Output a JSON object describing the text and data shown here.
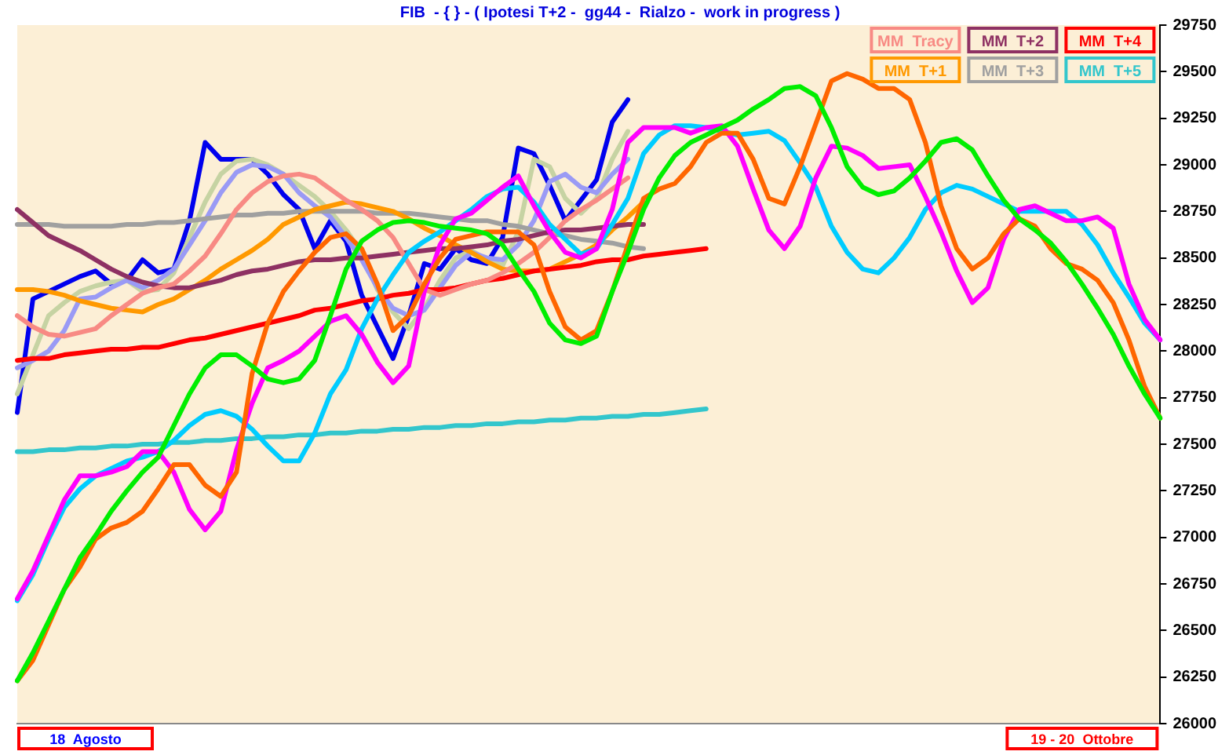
{
  "chart_data": {
    "type": "line",
    "title": "FIB  - { } - ( Ipotesi T+2 -  gg44 -  Rialzo -  work in progress )",
    "categories": [
      null,
      null,
      null,
      null,
      null,
      null,
      null,
      null,
      null,
      null,
      null,
      null,
      null,
      null,
      null,
      null,
      null,
      null,
      null,
      null,
      null,
      null,
      null,
      null,
      null,
      null,
      null,
      null,
      null,
      null,
      null,
      null,
      null,
      null,
      null,
      null,
      null,
      null,
      null,
      null,
      null,
      null,
      null,
      null,
      null,
      null,
      null,
      null,
      null,
      null,
      null,
      null,
      null,
      null,
      null,
      null,
      null,
      null,
      null,
      null,
      null,
      null,
      null,
      null,
      null,
      null,
      null,
      null,
      null,
      null,
      null,
      null,
      null,
      null
    ],
    "series": [
      {
        "color": "#00ee00",
        "values": [
          26230,
          26380,
          26550,
          26720,
          26890,
          27010,
          27140,
          27250,
          27350,
          27430,
          27600,
          27770,
          27910,
          27980,
          27980,
          27920,
          27850,
          27830,
          27850,
          27950,
          28190,
          28440,
          28590,
          28650,
          28690,
          28700,
          28690,
          28670,
          28660,
          28650,
          28630,
          28570,
          28440,
          28320,
          28150,
          28060,
          28040,
          28080,
          28320,
          28530,
          28760,
          28930,
          29050,
          29120,
          29160,
          29200,
          29240,
          29300,
          29350,
          29410,
          29420,
          29370,
          29200,
          28990,
          28880,
          28840,
          28860,
          28930,
          29020,
          29120,
          29140,
          29080,
          28940,
          28810,
          28710,
          28650,
          28580,
          28480,
          28360,
          28230,
          28090,
          27920,
          27770,
          27640
        ]
      },
      {
        "color": "#ff6600",
        "values": [
          26230,
          26340,
          26530,
          26720,
          26840,
          26990,
          27050,
          27080,
          27140,
          27260,
          27390,
          27390,
          27280,
          27220,
          27350,
          27880,
          28150,
          28320,
          28430,
          28530,
          28610,
          28630,
          28550,
          28360,
          28110,
          28190,
          28360,
          28500,
          28600,
          28620,
          28640,
          28640,
          28640,
          28570,
          28320,
          28130,
          28060,
          28110,
          28320,
          28570,
          28820,
          28870,
          28900,
          28990,
          29120,
          29170,
          29170,
          29030,
          28820,
          28790,
          28990,
          29220,
          29450,
          29490,
          29460,
          29410,
          29410,
          29350,
          29120,
          28780,
          28550,
          28440,
          28500,
          28630,
          28710,
          28670,
          28550,
          28470,
          28440,
          28380,
          28260,
          28060,
          27810,
          27640
        ]
      },
      {
        "color": "#ff00ff",
        "values": [
          26670,
          26820,
          27010,
          27200,
          27330,
          27330,
          27350,
          27380,
          27460,
          27460,
          27350,
          27150,
          27040,
          27140,
          27470,
          27720,
          27910,
          27950,
          28000,
          28080,
          28160,
          28190,
          28090,
          27940,
          27830,
          27920,
          28320,
          28570,
          28710,
          28740,
          28810,
          28880,
          28940,
          28780,
          28640,
          28530,
          28500,
          28550,
          28760,
          29120,
          29200,
          29200,
          29200,
          29170,
          29200,
          29210,
          29100,
          28870,
          28650,
          28550,
          28670,
          28930,
          29100,
          29090,
          29050,
          28980,
          28990,
          29000,
          28830,
          28640,
          28430,
          28260,
          28340,
          28600,
          28760,
          28780,
          28740,
          28700,
          28700,
          28720,
          28660,
          28360,
          28170,
          28060
        ]
      },
      {
        "color": "#00ccff",
        "values": [
          26660,
          26800,
          26990,
          27160,
          27260,
          27330,
          27370,
          27410,
          27430,
          27460,
          27520,
          27600,
          27660,
          27680,
          27650,
          27580,
          27490,
          27410,
          27410,
          27560,
          27770,
          27900,
          28120,
          28280,
          28410,
          28530,
          28590,
          28640,
          28700,
          28760,
          28830,
          28870,
          28880,
          28800,
          28680,
          28600,
          28520,
          28550,
          28680,
          28820,
          29060,
          29160,
          29210,
          29210,
          29200,
          29180,
          29160,
          29170,
          29180,
          29130,
          29010,
          28880,
          28670,
          28530,
          28440,
          28420,
          28500,
          28610,
          28760,
          28850,
          28890,
          28870,
          28830,
          28790,
          28750,
          28750,
          28750,
          28750,
          28680,
          28570,
          28420,
          28290,
          28150,
          28060
        ]
      },
      {
        "name": "MM  Tracy",
        "color": "#f88a84",
        "values": [
          28190,
          28130,
          28090,
          28080,
          28100,
          28120,
          28190,
          28250,
          28310,
          28340,
          28360,
          28430,
          28510,
          28630,
          28760,
          28850,
          28910,
          28940,
          28950,
          28930,
          28870,
          28810,
          28760,
          28700,
          28610,
          28470,
          28330,
          28300,
          28330,
          28360,
          28380,
          28420,
          28470,
          28530,
          28610,
          28700,
          28760,
          28810,
          28870,
          28930,
          null,
          null,
          null,
          null,
          null,
          null,
          null,
          null,
          null,
          null,
          null,
          null,
          null,
          null,
          null,
          null,
          null,
          null,
          null,
          null,
          null,
          null,
          null,
          null,
          null,
          null,
          null,
          null,
          null,
          null,
          null,
          null,
          null,
          null
        ]
      },
      {
        "name": "MM  T+2",
        "color": "#8e3163",
        "values": [
          28760,
          28690,
          28620,
          28580,
          28540,
          28490,
          28440,
          28400,
          28370,
          28350,
          28340,
          28340,
          28360,
          28380,
          28410,
          28430,
          28440,
          28460,
          28480,
          28490,
          28490,
          28500,
          28500,
          28510,
          28520,
          28530,
          28540,
          28550,
          28550,
          28560,
          28570,
          28590,
          28600,
          28620,
          28640,
          28650,
          28650,
          28660,
          28670,
          28680,
          28680,
          null,
          null,
          null,
          null,
          null,
          null,
          null,
          null,
          null,
          null,
          null,
          null,
          null,
          null,
          null,
          null,
          null,
          null,
          null,
          null,
          null,
          null,
          null,
          null,
          null,
          null,
          null,
          null,
          null,
          null,
          null,
          null,
          null
        ]
      },
      {
        "name": "MM  T+4",
        "color": "#ff0000",
        "values": [
          27950,
          27960,
          27960,
          27980,
          27990,
          28000,
          28010,
          28010,
          28020,
          28020,
          28040,
          28060,
          28070,
          28090,
          28110,
          28130,
          28150,
          28170,
          28190,
          28220,
          28230,
          28250,
          28270,
          28280,
          28300,
          28310,
          28330,
          28330,
          28340,
          28360,
          28380,
          28390,
          28410,
          28430,
          28440,
          28450,
          28460,
          28480,
          28490,
          28490,
          28510,
          28520,
          28530,
          28540,
          28550,
          null,
          null,
          null,
          null,
          null,
          null,
          null,
          null,
          null,
          null,
          null,
          null,
          null,
          null,
          null,
          null,
          null,
          null,
          null,
          null,
          null,
          null,
          null,
          null,
          null,
          null,
          null,
          null,
          null
        ]
      },
      {
        "name": "MM  T+1",
        "color": "#ff9900",
        "values": [
          28330,
          28330,
          28320,
          28300,
          28270,
          28250,
          28230,
          28220,
          28210,
          28250,
          28280,
          28330,
          28380,
          28440,
          28490,
          28540,
          28600,
          28680,
          28720,
          28760,
          28780,
          28800,
          28790,
          28770,
          28750,
          28710,
          28660,
          28620,
          28570,
          28530,
          28480,
          28440,
          28430,
          28430,
          28440,
          28480,
          28520,
          28570,
          28650,
          28720,
          28800,
          null,
          null,
          null,
          null,
          null,
          null,
          null,
          null,
          null,
          null,
          null,
          null,
          null,
          null,
          null,
          null,
          null,
          null,
          null,
          null,
          null,
          null,
          null,
          null,
          null,
          null,
          null,
          null,
          null,
          null,
          null,
          null,
          null
        ]
      },
      {
        "name": "MM  T+3",
        "color": "#a0a0a0",
        "values": [
          28680,
          28680,
          28680,
          28670,
          28670,
          28670,
          28670,
          28680,
          28680,
          28690,
          28690,
          28700,
          28710,
          28720,
          28730,
          28730,
          28740,
          28740,
          28750,
          28750,
          28750,
          28750,
          28750,
          28740,
          28740,
          28740,
          28730,
          28720,
          28710,
          28700,
          28700,
          28680,
          28670,
          28650,
          28630,
          28620,
          28600,
          28590,
          28580,
          28560,
          28550,
          null,
          null,
          null,
          null,
          null,
          null,
          null,
          null,
          null,
          null,
          null,
          null,
          null,
          null,
          null,
          null,
          null,
          null,
          null,
          null,
          null,
          null,
          null,
          null,
          null,
          null,
          null,
          null,
          null,
          null,
          null,
          null,
          null
        ]
      },
      {
        "name": "MM  T+5",
        "color": "#33c6cc",
        "values": [
          27460,
          27460,
          27470,
          27470,
          27480,
          27480,
          27490,
          27490,
          27500,
          27500,
          27510,
          27510,
          27520,
          27520,
          27530,
          27530,
          27540,
          27540,
          27550,
          27550,
          27560,
          27560,
          27570,
          27570,
          27580,
          27580,
          27590,
          27590,
          27600,
          27600,
          27610,
          27610,
          27620,
          27620,
          27630,
          27630,
          27640,
          27640,
          27650,
          27650,
          27660,
          27660,
          27670,
          27680,
          27690,
          null,
          null,
          null,
          null,
          null,
          null,
          null,
          null,
          null,
          null,
          null,
          null,
          null,
          null,
          null,
          null,
          null,
          null,
          null,
          null,
          null,
          null,
          null,
          null,
          null,
          null,
          null,
          null,
          null
        ]
      },
      {
        "color": "#9a9af5",
        "values": [
          27910,
          27950,
          28000,
          28110,
          28280,
          28290,
          28340,
          28380,
          28340,
          28380,
          28440,
          28570,
          28700,
          28850,
          28960,
          29000,
          28990,
          28950,
          28850,
          28780,
          28720,
          28610,
          28490,
          28340,
          28230,
          28190,
          28220,
          28340,
          28460,
          28530,
          28500,
          28490,
          28570,
          28700,
          28910,
          28950,
          28880,
          28850,
          28950,
          29030,
          null,
          null,
          null,
          null,
          null,
          null,
          null,
          null,
          null,
          null,
          null,
          null,
          null,
          null,
          null,
          null,
          null,
          null,
          null,
          null,
          null,
          null,
          null,
          null,
          null,
          null,
          null,
          null,
          null,
          null,
          null,
          null,
          null,
          null
        ]
      },
      {
        "color": "#c6d3a3",
        "values": [
          27770,
          27980,
          28190,
          28260,
          28320,
          28350,
          28370,
          28380,
          28320,
          28330,
          28420,
          28610,
          28800,
          28950,
          29020,
          29030,
          29000,
          28950,
          28890,
          28830,
          28750,
          28650,
          28530,
          28330,
          28210,
          28120,
          28230,
          28380,
          28500,
          28540,
          28490,
          28460,
          28640,
          29030,
          28990,
          28820,
          28740,
          28820,
          29030,
          29180,
          null,
          null,
          null,
          null,
          null,
          null,
          null,
          null,
          null,
          null,
          null,
          null,
          null,
          null,
          null,
          null,
          null,
          null,
          null,
          null,
          null,
          null,
          null,
          null,
          null,
          null,
          null,
          null,
          null,
          null,
          null,
          null,
          null,
          null
        ]
      },
      {
        "color": "#0000ee",
        "values": [
          27670,
          28280,
          28320,
          28360,
          28400,
          28430,
          28360,
          28380,
          28490,
          28420,
          28440,
          28700,
          29120,
          29030,
          29030,
          29030,
          28950,
          28840,
          28760,
          28550,
          28700,
          28590,
          28300,
          28130,
          27960,
          28190,
          28470,
          28440,
          28550,
          28490,
          28470,
          28610,
          29090,
          29060,
          28890,
          28700,
          28810,
          28920,
          29230,
          29350,
          null,
          null,
          null,
          null,
          null,
          null,
          null,
          null,
          null,
          null,
          null,
          null,
          null,
          null,
          null,
          null,
          null,
          null,
          null,
          null,
          null,
          null,
          null,
          null,
          null,
          null,
          null,
          null,
          null,
          null,
          null,
          null,
          null,
          null
        ]
      }
    ],
    "ylim": [
      26000,
      29750
    ],
    "yticks": [
      26000,
      26250,
      26500,
      26750,
      27000,
      27250,
      27500,
      27750,
      28000,
      28250,
      28500,
      28750,
      29000,
      29250,
      29500,
      29750
    ],
    "grid": false,
    "legend": "top right",
    "marker": "none",
    "line_style": "solid",
    "tick_labels": "y",
    "annotations": [
      "18  Agosto",
      "19 - 20  Ottobre"
    ]
  }
}
